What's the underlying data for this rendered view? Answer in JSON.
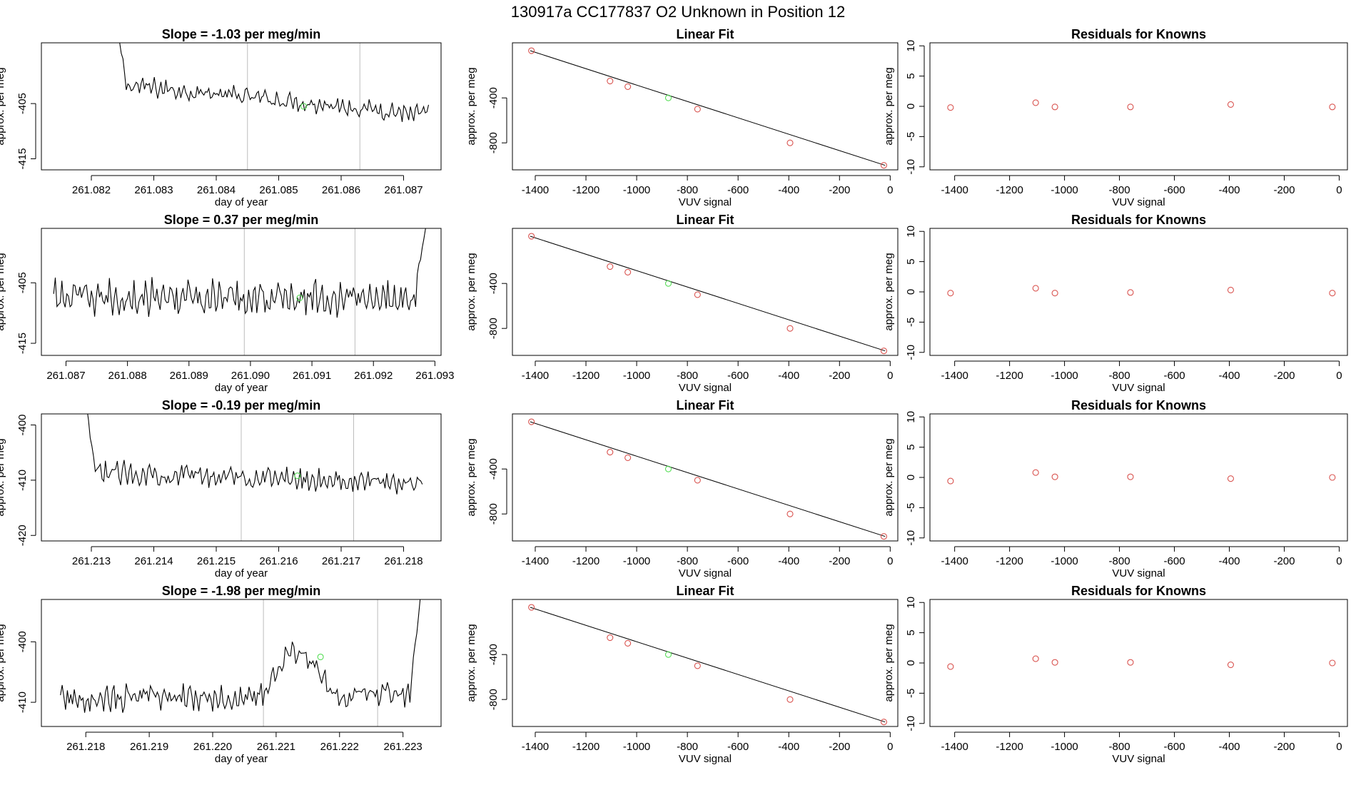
{
  "main_title": "130917a      CC177837    O2 Unknown in Position  12",
  "chart_data": {
    "type": "panel-grid",
    "rows": [
      {
        "timeseries": {
          "type": "line",
          "title": "Slope =  -1.03  per meg/min",
          "xlabel": "day of year",
          "ylabel": "approx. per meg",
          "xlim": [
            261.0812,
            261.0876
          ],
          "ylim": [
            -417,
            -394
          ],
          "xticks": [
            261.082,
            261.083,
            261.084,
            261.085,
            261.086,
            261.087
          ],
          "xtick_labels": [
            "261.082",
            "261.083",
            "261.084",
            "261.085",
            "261.086",
            "261.087"
          ],
          "yticks": [
            -405,
            -415
          ],
          "ytick_labels": [
            "-405",
            "-415"
          ],
          "start": 261.0824,
          "end": 261.0874,
          "npoints": 190,
          "base_start": -401.5,
          "base_end": -407.0,
          "noise": 1.3,
          "spike_start": -390,
          "spike_len": 6,
          "spike_side": "start",
          "vlines": [
            261.0845,
            261.0863
          ],
          "marker": {
            "x": 261.0854,
            "y": -405.5
          }
        },
        "fit": {
          "type": "scatter",
          "title": "Linear Fit",
          "xlabel": "VUV signal",
          "ylabel": "approx. per meg",
          "xlim": [
            -1490,
            30
          ],
          "ylim": [
            -1040,
            90
          ],
          "line": [
            [
              -1420,
              20
            ],
            [
              -20,
              -1000
            ]
          ],
          "knowns": [
            [
              -1415,
              20
            ],
            [
              -1105,
              -250
            ],
            [
              -1035,
              -300
            ],
            [
              -760,
              -500
            ],
            [
              -395,
              -800
            ],
            [
              -25,
              -1000
            ]
          ],
          "unknown": [
            [
              -875,
              -400
            ]
          ]
        },
        "residuals": {
          "type": "scatter",
          "title": "Residuals for Knowns",
          "xlabel": "VUV signal",
          "ylabel": "approx. per meg",
          "xlim": [
            -1490,
            30
          ],
          "ylim": [
            -10.5,
            10.5
          ],
          "points": [
            [
              -1415,
              -0.2
            ],
            [
              -1105,
              0.6
            ],
            [
              -1035,
              -0.1
            ],
            [
              -760,
              -0.1
            ],
            [
              -395,
              0.3
            ],
            [
              -25,
              -0.1
            ]
          ]
        }
      },
      {
        "timeseries": {
          "type": "line",
          "title": "Slope =  0.37  per meg/min",
          "xlabel": "day of year",
          "ylabel": "approx. per meg",
          "xlim": [
            261.0866,
            261.0931
          ],
          "ylim": [
            -417,
            -396
          ],
          "xticks": [
            261.087,
            261.088,
            261.089,
            261.09,
            261.091,
            261.092,
            261.093
          ],
          "xtick_labels": [
            "261.087",
            "261.088",
            "261.089",
            "261.090",
            "261.091",
            "261.092",
            "261.093"
          ],
          "yticks": [
            -405,
            -415
          ],
          "ytick_labels": [
            "-405",
            "-415"
          ],
          "start": 261.0868,
          "end": 261.0929,
          "npoints": 230,
          "base_start": -407.5,
          "base_end": -407.5,
          "noise": 2.2,
          "spike_start": -392,
          "spike_len": 8,
          "spike_side": "end",
          "vlines": [
            261.0899,
            261.0917
          ],
          "marker": {
            "x": 261.0908,
            "y": -407.5
          }
        },
        "fit": {
          "type": "scatter",
          "title": "Linear Fit",
          "xlabel": "VUV signal",
          "ylabel": "approx. per meg",
          "xlim": [
            -1490,
            30
          ],
          "ylim": [
            -1040,
            90
          ],
          "line": [
            [
              -1420,
              20
            ],
            [
              -20,
              -1000
            ]
          ],
          "knowns": [
            [
              -1415,
              20
            ],
            [
              -1105,
              -250
            ],
            [
              -1035,
              -300
            ],
            [
              -760,
              -500
            ],
            [
              -395,
              -800
            ],
            [
              -25,
              -1000
            ]
          ],
          "unknown": [
            [
              -875,
              -400
            ]
          ]
        },
        "residuals": {
          "type": "scatter",
          "title": "Residuals for Knowns",
          "xlabel": "VUV signal",
          "ylabel": "approx. per meg",
          "xlim": [
            -1490,
            30
          ],
          "ylim": [
            -10.5,
            10.5
          ],
          "points": [
            [
              -1415,
              -0.2
            ],
            [
              -1105,
              0.6
            ],
            [
              -1035,
              -0.2
            ],
            [
              -760,
              -0.1
            ],
            [
              -395,
              0.3
            ],
            [
              -25,
              -0.2
            ]
          ]
        }
      },
      {
        "timeseries": {
          "type": "line",
          "title": "Slope =  -0.19  per meg/min",
          "xlabel": "day of year",
          "ylabel": "approx. per meg",
          "xlim": [
            261.2122,
            261.2186
          ],
          "ylim": [
            -421,
            -398
          ],
          "xticks": [
            261.213,
            261.214,
            261.215,
            261.216,
            261.217,
            261.218
          ],
          "xtick_labels": [
            "261.213",
            "261.214",
            "261.215",
            "261.216",
            "261.217",
            "261.218"
          ],
          "yticks": [
            -400,
            -410,
            -420
          ],
          "ytick_labels": [
            "-400",
            "-410",
            "-420"
          ],
          "start": 261.2129,
          "end": 261.2183,
          "npoints": 200,
          "base_start": -408.5,
          "base_end": -410.5,
          "noise": 1.5,
          "spike_start": -395,
          "spike_len": 6,
          "spike_side": "start",
          "vlines": [
            261.2154,
            261.2172
          ],
          "marker": {
            "x": 261.2163,
            "y": -409.2
          }
        },
        "fit": {
          "type": "scatter",
          "title": "Linear Fit",
          "xlabel": "VUV signal",
          "ylabel": "approx. per meg",
          "xlim": [
            -1490,
            30
          ],
          "ylim": [
            -1040,
            90
          ],
          "line": [
            [
              -1420,
              20
            ],
            [
              -20,
              -1000
            ]
          ],
          "knowns": [
            [
              -1415,
              20
            ],
            [
              -1105,
              -250
            ],
            [
              -1035,
              -300
            ],
            [
              -760,
              -500
            ],
            [
              -395,
              -800
            ],
            [
              -25,
              -1000
            ]
          ],
          "unknown": [
            [
              -875,
              -400
            ]
          ]
        },
        "residuals": {
          "type": "scatter",
          "title": "Residuals for Knowns",
          "xlabel": "VUV signal",
          "ylabel": "approx. per meg",
          "xlim": [
            -1490,
            30
          ],
          "ylim": [
            -10.5,
            10.5
          ],
          "points": [
            [
              -1415,
              -0.6
            ],
            [
              -1105,
              0.8
            ],
            [
              -1035,
              0.1
            ],
            [
              -760,
              0.1
            ],
            [
              -395,
              -0.2
            ],
            [
              -25,
              0.0
            ]
          ]
        }
      },
      {
        "timeseries": {
          "type": "line",
          "title": "Slope =  -1.98  per meg/min",
          "xlabel": "day of year",
          "ylabel": "approx. per meg",
          "xlim": [
            261.2173,
            261.2236
          ],
          "ylim": [
            -414,
            -393
          ],
          "xticks": [
            261.218,
            261.219,
            261.22,
            261.221,
            261.222,
            261.223
          ],
          "xtick_labels": [
            "261.218",
            "261.219",
            "261.220",
            "261.221",
            "261.222",
            "261.223"
          ],
          "yticks": [
            -400,
            -410
          ],
          "ytick_labels": [
            "-400",
            "-410"
          ],
          "start": 261.2176,
          "end": 261.2233,
          "npoints": 210,
          "base_start": -409.5,
          "base_end": -408.5,
          "noise": 1.6,
          "spike_start": -390,
          "spike_len": 7,
          "spike_side": "end",
          "hump": {
            "from": 261.2208,
            "to": 261.2222,
            "amount": 7.0
          },
          "vlines": [
            261.2208,
            261.2226
          ],
          "marker": {
            "x": 261.2217,
            "y": -402.5
          }
        },
        "fit": {
          "type": "scatter",
          "title": "Linear Fit",
          "xlabel": "VUV signal",
          "ylabel": "approx. per meg",
          "xlim": [
            -1490,
            30
          ],
          "ylim": [
            -1040,
            90
          ],
          "line": [
            [
              -1420,
              20
            ],
            [
              -20,
              -1000
            ]
          ],
          "knowns": [
            [
              -1415,
              20
            ],
            [
              -1105,
              -250
            ],
            [
              -1035,
              -300
            ],
            [
              -760,
              -500
            ],
            [
              -395,
              -800
            ],
            [
              -25,
              -1000
            ]
          ],
          "unknown": [
            [
              -875,
              -400
            ]
          ]
        },
        "residuals": {
          "type": "scatter",
          "title": "Residuals for Knowns",
          "xlabel": "VUV signal",
          "ylabel": "approx. per meg",
          "xlim": [
            -1490,
            30
          ],
          "ylim": [
            -10.5,
            10.5
          ],
          "points": [
            [
              -1415,
              -0.6
            ],
            [
              -1105,
              0.7
            ],
            [
              -1035,
              0.1
            ],
            [
              -760,
              0.1
            ],
            [
              -395,
              -0.3
            ],
            [
              -25,
              0.0
            ]
          ]
        }
      }
    ],
    "fit_xticks": [
      -1400,
      -1200,
      -1000,
      -800,
      -600,
      -400,
      -200,
      0
    ],
    "fit_xtick_labels": [
      "-1400",
      "-1200",
      "-1000",
      "-800",
      "-600",
      "-400",
      "-200",
      "0"
    ],
    "fit_yticks": [
      -400,
      -800
    ],
    "fit_ytick_labels": [
      "-400",
      "-800"
    ],
    "res_yticks": [
      10,
      5,
      0,
      -5,
      -10
    ],
    "res_ytick_labels": [
      "10",
      "5",
      "0",
      "-5",
      "-10"
    ]
  }
}
